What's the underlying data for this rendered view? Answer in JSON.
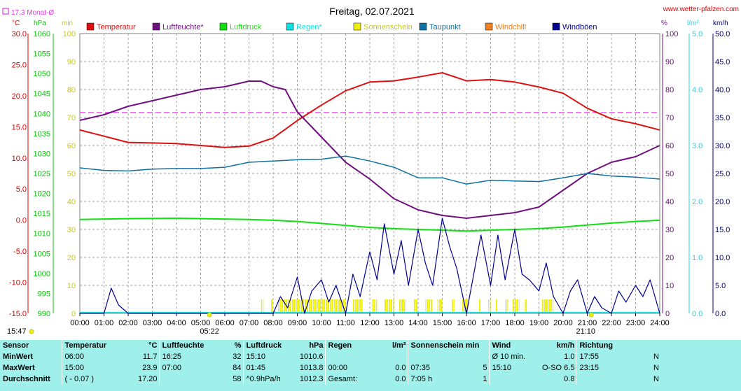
{
  "chart_data": {
    "type": "line",
    "title": "Freitag, 02.07.2021",
    "source": "www.wetter-pfalzen.com",
    "monthly_avg_label": "17.3 Monat-Ø",
    "monthly_avg_temp": 17.3,
    "colors": {
      "temperature": "#e01010",
      "humidity": "#701080",
      "pressure": "#10e010",
      "rain": "#10e0e0",
      "sunshine": "#f0f010",
      "dewpoint": "#1070a0",
      "windchill": "#f08020",
      "gust": "#000090",
      "monthly_avg": "#e040e0",
      "wind_axis": "#30d0e0"
    },
    "legend": [
      {
        "key": "temperature",
        "label": "Temperatur"
      },
      {
        "key": "humidity",
        "label": "Luftfeuchte*"
      },
      {
        "key": "pressure",
        "label": "Luftdruck"
      },
      {
        "key": "rain",
        "label": "Regen*"
      },
      {
        "key": "sunshine",
        "label": "Sonnenschein"
      },
      {
        "key": "dewpoint",
        "label": "Taupunkt"
      },
      {
        "key": "windchill",
        "label": "Windchill"
      },
      {
        "key": "gust",
        "label": "Windböen"
      }
    ],
    "axes": {
      "temp": {
        "unit": "°C",
        "min": -15,
        "max": 30,
        "ticks": [
          "30.0",
          "25.0",
          "20.0",
          "15.0",
          "10.0",
          "5.0",
          "0.0",
          "-5.0",
          "-10.0",
          "-15.0"
        ]
      },
      "pressure": {
        "unit": "hPa",
        "min": 990,
        "max": 1060,
        "ticks": [
          "1060",
          "1055",
          "1050",
          "1045",
          "1040",
          "1035",
          "1030",
          "1025",
          "1020",
          "1015",
          "1010",
          "1005",
          "1000",
          "995",
          "990"
        ]
      },
      "sunshine": {
        "unit": "min",
        "min": 0,
        "max": 100,
        "ticks": [
          "100",
          "90",
          "80",
          "70",
          "60",
          "50",
          "40",
          "30",
          "20",
          "10",
          "0"
        ]
      },
      "humidity": {
        "unit": "%",
        "min": 0,
        "max": 100,
        "ticks": [
          "100",
          "90",
          "80",
          "70",
          "60",
          "50",
          "40",
          "30",
          "20",
          "10",
          "0"
        ]
      },
      "rain": {
        "unit": "l/m²",
        "min": 0,
        "max": 5,
        "ticks": [
          "5.0",
          "4.0",
          "3.0",
          "2.0",
          "1.0",
          "0.0"
        ]
      },
      "wind": {
        "unit": "km/h",
        "min": 0,
        "max": 50,
        "ticks": [
          "50.0",
          "45.0",
          "40.0",
          "35.0",
          "30.0",
          "25.0",
          "20.0",
          "15.0",
          "10.0",
          "5.0",
          "0.0"
        ]
      },
      "time_ticks": [
        "00:00",
        "01:00",
        "02:00",
        "03:00",
        "04:00",
        "05:00",
        "06:00",
        "07:00",
        "08:00",
        "09:00",
        "10:00",
        "11:00",
        "12:00",
        "13:00",
        "14:00",
        "15:00",
        "16:00",
        "17:00",
        "18:00",
        "19:00",
        "20:00",
        "21:00",
        "22:00",
        "23:00",
        "24:00"
      ]
    },
    "sunrise": "05:22",
    "sunset": "21:10",
    "series": [
      {
        "key": "temperature",
        "x": [
          0,
          1,
          2,
          3,
          4,
          5,
          6,
          7,
          8,
          9,
          10,
          11,
          12,
          13,
          14,
          15,
          16,
          17,
          18,
          19,
          20,
          21,
          22,
          23,
          24
        ],
        "y": [
          14.5,
          13.5,
          12.5,
          12.4,
          12.3,
          12.0,
          11.7,
          11.9,
          13.2,
          16.0,
          18.5,
          20.8,
          22.2,
          22.4,
          23.0,
          23.7,
          22.4,
          22.6,
          22.2,
          21.4,
          20.4,
          18.0,
          16.3,
          15.5,
          14.5
        ]
      },
      {
        "key": "humidity",
        "x": [
          0,
          1,
          2,
          3,
          4,
          5,
          6,
          7,
          7.5,
          8,
          8.5,
          9,
          10,
          11,
          12,
          13,
          14,
          15,
          16,
          17,
          18,
          19,
          20,
          21,
          22,
          23,
          24
        ],
        "y": [
          69,
          71,
          74,
          76,
          78,
          80,
          81,
          83,
          83,
          81,
          80,
          72,
          63,
          54,
          48,
          41,
          37,
          35,
          34,
          35,
          36,
          38,
          44,
          50,
          54,
          56,
          60
        ]
      },
      {
        "key": "pressure",
        "x": [
          0,
          2,
          4,
          5,
          7,
          8,
          9,
          10,
          11,
          12,
          13,
          14,
          15,
          16,
          17,
          18,
          19,
          20,
          21,
          22,
          23,
          24
        ],
        "y": [
          1013.5,
          1013.7,
          1013.8,
          1013.7,
          1013.5,
          1013.3,
          1013.0,
          1012.5,
          1012.0,
          1011.5,
          1011.2,
          1011.0,
          1010.8,
          1010.6,
          1010.8,
          1011.0,
          1011.2,
          1011.6,
          1012.1,
          1012.6,
          1013.0,
          1013.3
        ]
      },
      {
        "key": "dewpoint",
        "x": [
          0,
          1,
          2,
          3,
          4,
          5,
          6,
          7,
          8,
          9,
          10,
          11,
          12,
          13,
          14,
          15,
          16,
          17,
          18,
          19,
          20,
          21,
          22,
          23,
          24
        ],
        "y": [
          8.4,
          8.0,
          7.9,
          8.2,
          8.3,
          8.3,
          8.5,
          9.3,
          9.5,
          9.7,
          9.8,
          10.3,
          9.5,
          8.5,
          6.8,
          6.8,
          5.8,
          6.4,
          6.3,
          6.2,
          6.8,
          7.5,
          7.1,
          6.9,
          6.6
        ]
      },
      {
        "key": "gust",
        "x": [
          0,
          1,
          1.3,
          1.6,
          2,
          3,
          4,
          5,
          6,
          7,
          8,
          8.3,
          8.6,
          9,
          9.3,
          9.6,
          10,
          10.3,
          10.6,
          11,
          11.3,
          11.6,
          12,
          12.3,
          12.6,
          13,
          13.3,
          13.6,
          14,
          14.3,
          14.6,
          15,
          15.3,
          15.6,
          16,
          16.3,
          16.6,
          17,
          17.3,
          17.6,
          18,
          18.3,
          18.6,
          19,
          19.3,
          19.6,
          20,
          20.3,
          20.6,
          21,
          21.3,
          21.6,
          22,
          22.3,
          22.6,
          23,
          23.3,
          23.6,
          24
        ],
        "y": [
          0,
          0,
          4.5,
          1.5,
          0,
          0,
          0,
          0,
          0,
          0,
          0,
          3,
          1,
          6.5,
          0,
          4,
          6,
          2,
          5,
          0,
          7,
          3,
          11,
          6,
          16,
          7,
          13,
          5,
          15,
          9,
          5,
          17,
          12,
          8,
          0,
          7,
          14,
          5,
          14,
          6,
          15,
          7,
          6,
          4,
          9,
          3,
          0,
          4,
          6,
          0,
          3,
          1,
          0,
          4,
          2,
          5,
          3,
          6,
          0
        ]
      }
    ],
    "sunshine_periods": [
      [
        7.5,
        7.6
      ],
      [
        7.9,
        8.0
      ],
      [
        8.2,
        11.0
      ],
      [
        11.3,
        11.7
      ],
      [
        12.1,
        12.3
      ],
      [
        12.6,
        13.0
      ],
      [
        13.2,
        13.5
      ],
      [
        13.8,
        14.0
      ],
      [
        14.3,
        14.6
      ],
      [
        14.8,
        15.0
      ],
      [
        15.4,
        15.5
      ],
      [
        15.8,
        16.1
      ],
      [
        16.5,
        16.6
      ],
      [
        16.9,
        17.0
      ],
      [
        17.2,
        17.3
      ],
      [
        17.6,
        17.7
      ],
      [
        17.9,
        18.2
      ],
      [
        18.4,
        18.5
      ],
      [
        19.1,
        19.6
      ]
    ],
    "stats": {
      "headers": [
        {
          "name": "Sensor",
          "unit": ""
        },
        {
          "name": "Temperatur",
          "unit": "°C"
        },
        {
          "name": "Luftfeuchte",
          "unit": "%"
        },
        {
          "name": "Luftdruck",
          "unit": "hPa"
        },
        {
          "name": "Regen",
          "unit": "l/m²"
        },
        {
          "name": "Sonnenschein min",
          "unit": ""
        },
        {
          "name": "Wind",
          "unit": "km/h"
        },
        {
          "name": "Richtung",
          "unit": ""
        }
      ],
      "rows": [
        {
          "label": "MinWert",
          "cells": [
            "06:00",
            "11.7",
            "16:25",
            "32",
            "15:10",
            "1010.6",
            "",
            "",
            "",
            "",
            "Ø 10 min.",
            "1.0",
            "17:55",
            "N"
          ]
        },
        {
          "label": "MaxWert",
          "cells": [
            "15:00",
            "23.9",
            "07:00",
            "84",
            "01:45",
            "1013.8",
            "00:00",
            "0.0",
            "07:35",
            "5",
            "15:10",
            "O-SO 6.5",
            "23:15",
            "N"
          ]
        },
        {
          "label": "Durchschnitt",
          "cells": [
            "( - 0.07 )",
            "17.20",
            "",
            "58",
            "^0.9hPa/h",
            "1012.3",
            "Gesamt:",
            "0.0",
            "7:05 h",
            "1",
            "",
            "0.8",
            "",
            "N"
          ]
        }
      ]
    },
    "current_time": "15:47"
  }
}
